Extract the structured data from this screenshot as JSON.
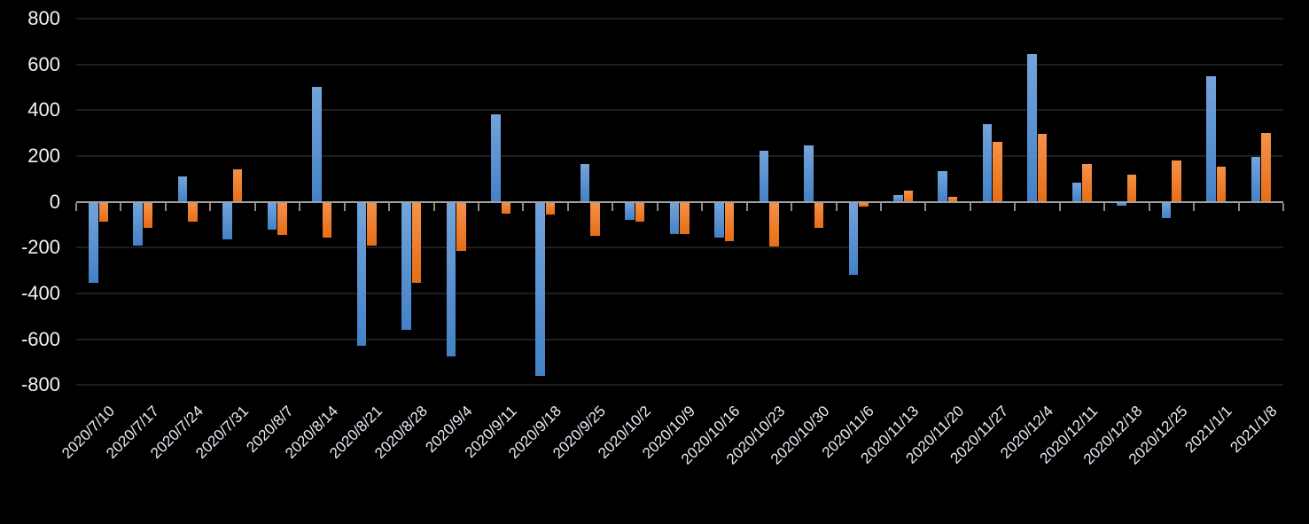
{
  "chart_data": {
    "type": "bar",
    "title": "",
    "xlabel": "",
    "ylabel": "",
    "legend": "none",
    "grid": true,
    "ylim": [
      -800,
      800
    ],
    "yticks": [
      800,
      600,
      400,
      200,
      0,
      -200,
      -400,
      -600,
      -800
    ],
    "categories": [
      "2020/7/10",
      "2020/7/17",
      "2020/7/24",
      "2020/7/31",
      "2020/8/7",
      "2020/8/14",
      "2020/8/21",
      "2020/8/28",
      "2020/9/4",
      "2020/9/11",
      "2020/9/18",
      "2020/9/25",
      "2020/10/2",
      "2020/10/9",
      "2020/10/16",
      "2020/10/23",
      "2020/10/30",
      "2020/11/6",
      "2020/11/13",
      "2020/11/20",
      "2020/11/27",
      "2020/12/4",
      "2020/12/11",
      "2020/12/18",
      "2020/12/25",
      "2021/1/1",
      "2021/1/8"
    ],
    "series": [
      {
        "id": "series-1-blue",
        "color_top": "#74a4db",
        "color_bottom": "#4381c7",
        "values": [
          -355,
          -190,
          110,
          -165,
          -120,
          500,
          -630,
          -560,
          -675,
          380,
          -760,
          165,
          -80,
          -140,
          -155,
          225,
          245,
          -320,
          30,
          135,
          340,
          645,
          85,
          -15,
          -70,
          550,
          195
        ]
      },
      {
        "id": "series-2-orange",
        "color_top": "#f4924a",
        "color_bottom": "#e86d15",
        "values": [
          -85,
          -115,
          -85,
          140,
          -145,
          -155,
          -190,
          -355,
          -215,
          -50,
          -55,
          -150,
          -85,
          -140,
          -170,
          -195,
          -115,
          -20,
          50,
          20,
          260,
          295,
          165,
          120,
          180,
          155,
          300
        ]
      }
    ],
    "style": {
      "background": "#000000",
      "gridline_color": "#1e1e1e",
      "axis_line_color": "#a2a2a2",
      "axis_tick_color": "#8a8a8a",
      "y_label_color": "#f2f2f2",
      "x_label_color": "#e8eef6"
    }
  }
}
